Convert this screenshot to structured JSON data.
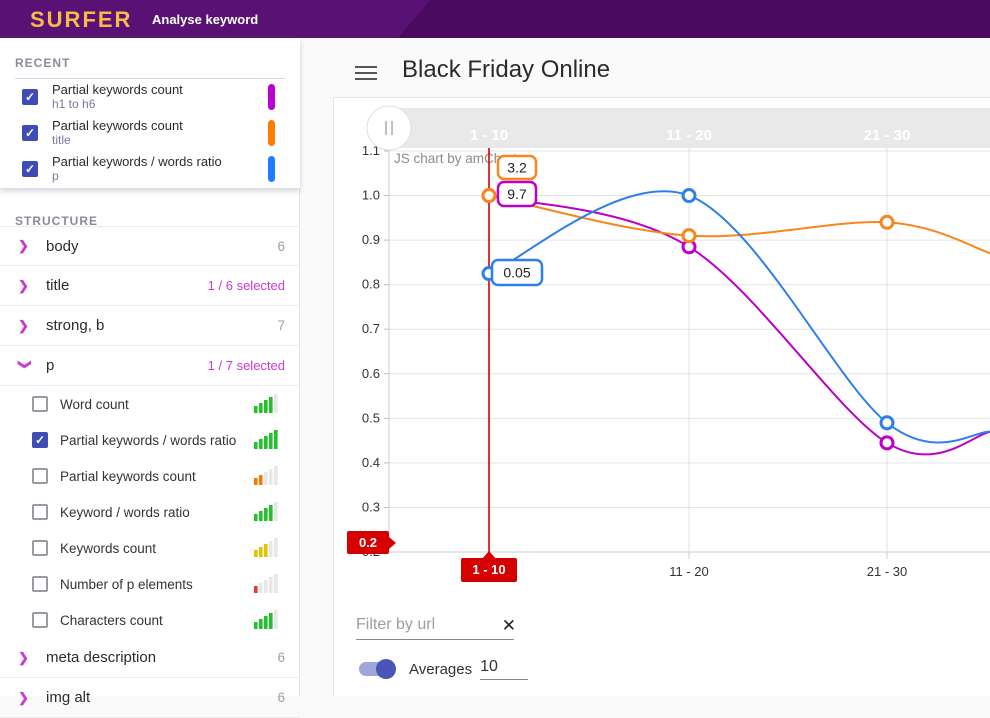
{
  "topbar": {
    "logo": "SURFER",
    "nav_item": "Analyse keyword"
  },
  "icons": {
    "check": "✓",
    "chevron": "❯",
    "clear": "✕"
  },
  "sidebar": {
    "recent": {
      "heading": "RECENT",
      "items": [
        {
          "title": "Partial keywords count",
          "subtitle": "h1 to h6",
          "checked": true,
          "color": "#bb00d4"
        },
        {
          "title": "Partial keywords count",
          "subtitle": "title",
          "checked": true,
          "color": "#ff7c00"
        },
        {
          "title": "Partial keywords / words ratio",
          "subtitle": "p",
          "checked": true,
          "color": "#1c7dff"
        }
      ]
    },
    "structure_heading": "STRUCTURE",
    "sections": [
      {
        "label": "body",
        "badge": "6",
        "selected": false,
        "expanded": false
      },
      {
        "label": "title",
        "badge": "1 / 6 selected",
        "selected": true,
        "expanded": false
      },
      {
        "label": "strong, b",
        "badge": "7",
        "selected": false,
        "expanded": false
      },
      {
        "label": "p",
        "badge": "1 / 7 selected",
        "selected": true,
        "expanded": true,
        "metrics": [
          {
            "label": "Word count",
            "checked": false,
            "bars": [
              "#22c32a",
              "#22c32a",
              "#22c32a",
              "#22c32a",
              "#e7e7e7"
            ]
          },
          {
            "label": "Partial keywords / words ratio",
            "checked": true,
            "bars": [
              "#22c32a",
              "#22c32a",
              "#22c32a",
              "#22c32a",
              "#22c32a"
            ]
          },
          {
            "label": "Partial keywords count",
            "checked": false,
            "bars": [
              "#f57c00",
              "#f57c00",
              "#e7e7e7",
              "#e7e7e7",
              "#e7e7e7"
            ]
          },
          {
            "label": "Keyword / words ratio",
            "checked": false,
            "bars": [
              "#22c32a",
              "#22c32a",
              "#22c32a",
              "#22c32a",
              "#e7e7e7"
            ]
          },
          {
            "label": "Keywords count",
            "checked": false,
            "bars": [
              "#e6c200",
              "#e6c200",
              "#e6c200",
              "#e7e7e7",
              "#e7e7e7"
            ]
          },
          {
            "label": "Number of p elements",
            "checked": false,
            "bars": [
              "#e53935",
              "#e7e7e7",
              "#e7e7e7",
              "#e7e7e7",
              "#e7e7e7"
            ]
          },
          {
            "label": "Characters count",
            "checked": false,
            "bars": [
              "#22c32a",
              "#22c32a",
              "#22c32a",
              "#22c32a",
              "#e7e7e7"
            ]
          }
        ]
      },
      {
        "label": "meta description",
        "badge": "6",
        "selected": false,
        "expanded": false
      },
      {
        "label": "img alt",
        "badge": "6",
        "selected": false,
        "expanded": false
      }
    ]
  },
  "main": {
    "title": "Black Friday Online",
    "filter": {
      "placeholder": "Filter by url"
    },
    "averages": {
      "label": "Averages",
      "value": "10",
      "enabled": true
    }
  },
  "chart_data": {
    "type": "line",
    "title": "Black Friday Online",
    "categories": [
      "1 - 10",
      "11 - 20",
      "21 - 30"
    ],
    "series": [
      {
        "name": "Partial keywords count — h1 to h6",
        "color": "#bc00c8",
        "values": [
          1.0,
          0.885,
          0.445
        ],
        "edge_value": 0.47,
        "cursor_tooltip": "9.7"
      },
      {
        "name": "Partial keywords count — title",
        "color": "#f8861d",
        "values": [
          1.0,
          0.91,
          0.94
        ],
        "edge_value": 0.87,
        "cursor_tooltip": "3.2"
      },
      {
        "name": "Partial keywords / words ratio — p",
        "color": "#2f7fe8",
        "values": [
          0.825,
          1.0,
          0.49
        ],
        "edge_value": 0.47,
        "cursor_tooltip": "0.05"
      }
    ],
    "ylim": [
      0.2,
      1.1
    ],
    "y_step": 0.1,
    "grid": true,
    "legend_position": "none",
    "watermark": "JS chart by amCharts",
    "scrollbar_labels": [
      "1 - 10",
      "11 - 20",
      "21 - 30"
    ],
    "cursor": {
      "category": "1 - 10",
      "axis_label": "0.2",
      "color": "#d50000"
    }
  }
}
